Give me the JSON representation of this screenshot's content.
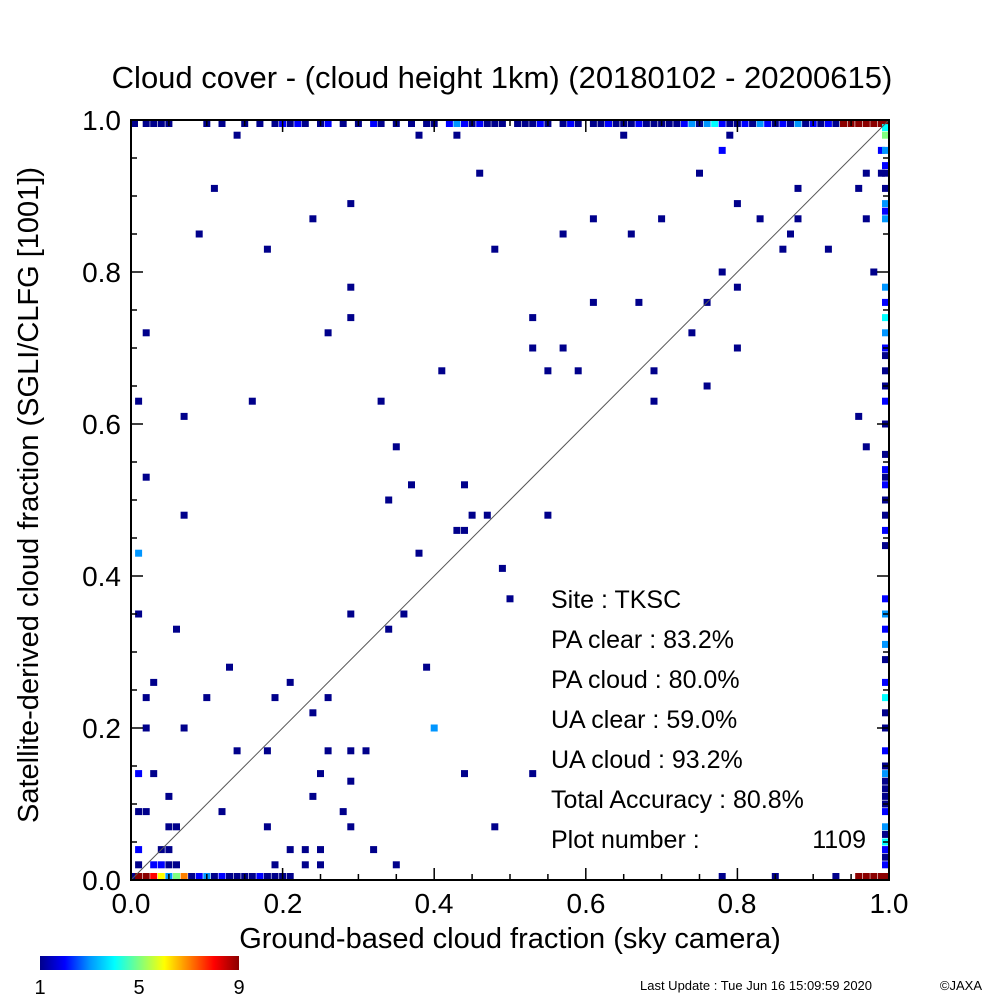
{
  "chart_data": {
    "type": "heatmap",
    "title": "Cloud cover - (cloud height 1km)  (20180102 - 20200615)",
    "xlabel": "Ground-based cloud fraction (sky camera)",
    "ylabel": "Satellite-derived cloud fraction (SGLI/CLFG [1001])",
    "xlim": [
      0,
      1
    ],
    "ylim": [
      0,
      1
    ],
    "xticks": [
      "0.0",
      "0.2",
      "0.4",
      "0.6",
      "0.8",
      "1.0"
    ],
    "yticks": [
      "0.0",
      "0.2",
      "0.4",
      "0.6",
      "0.8",
      "1.0"
    ],
    "diagonal": true,
    "grid": false,
    "colorbar": {
      "min": 1,
      "max": 9,
      "labels": [
        "1",
        "5",
        "9"
      ],
      "stops": [
        "#00008b",
        "#0000ff",
        "#0096ff",
        "#00ffff",
        "#7fff7f",
        "#ffff00",
        "#ff8000",
        "#ff0000",
        "#8b0000"
      ]
    },
    "stats": {
      "site": "Site : TKSC",
      "pa_clear": "PA clear :  83.2%",
      "pa_cloud": "PA cloud :  80.0%",
      "ua_clear": "UA clear :  59.0%",
      "ua_cloud": "UA cloud :  93.2%",
      "total_accuracy": "Total Accuracy :  80.8%",
      "plot_number_label": "Plot number :",
      "plot_number_value": "1109"
    },
    "points": [
      [
        0.01,
        0.63,
        1
      ],
      [
        0.02,
        0.72,
        1
      ],
      [
        0.02,
        0.53,
        1
      ],
      [
        0.01,
        0.43,
        3
      ],
      [
        0.01,
        0.35,
        1
      ],
      [
        0.03,
        0.26,
        1
      ],
      [
        0.02,
        0.24,
        1
      ],
      [
        0.02,
        0.2,
        1
      ],
      [
        0.01,
        0.14,
        2
      ],
      [
        0.03,
        0.14,
        1
      ],
      [
        0.01,
        0.09,
        1
      ],
      [
        0.02,
        0.09,
        1
      ],
      [
        0.05,
        0.11,
        1
      ],
      [
        0.05,
        0.07,
        1
      ],
      [
        0.06,
        0.07,
        1
      ],
      [
        0.07,
        0.61,
        1
      ],
      [
        0.06,
        0.33,
        1
      ],
      [
        0.07,
        0.2,
        1
      ],
      [
        0.07,
        0.48,
        1
      ],
      [
        0.01,
        0.04,
        2
      ],
      [
        0.04,
        0.04,
        1
      ],
      [
        0.05,
        0.04,
        1
      ],
      [
        0.01,
        0.02,
        1
      ],
      [
        0.03,
        0.02,
        2
      ],
      [
        0.04,
        0.02,
        2
      ],
      [
        0.05,
        0.02,
        1
      ],
      [
        0.06,
        0.02,
        1
      ],
      [
        0.09,
        0.85,
        1
      ],
      [
        0.11,
        0.91,
        1
      ],
      [
        0.14,
        0.98,
        1
      ],
      [
        0.16,
        0.63,
        1
      ],
      [
        0.18,
        0.83,
        1
      ],
      [
        0.1,
        0.24,
        1
      ],
      [
        0.13,
        0.28,
        1
      ],
      [
        0.14,
        0.17,
        1
      ],
      [
        0.12,
        0.09,
        1
      ],
      [
        0.18,
        0.07,
        1
      ],
      [
        0.19,
        0.24,
        1
      ],
      [
        0.21,
        0.26,
        1
      ],
      [
        0.18,
        0.17,
        1
      ],
      [
        0.19,
        0.02,
        1
      ],
      [
        0.21,
        0.04,
        1
      ],
      [
        0.23,
        0.04,
        1
      ],
      [
        0.23,
        0.02,
        1
      ],
      [
        0.25,
        0.02,
        1
      ],
      [
        0.25,
        0.04,
        1
      ],
      [
        0.24,
        0.87,
        1
      ],
      [
        0.29,
        0.89,
        1
      ],
      [
        0.26,
        0.72,
        1
      ],
      [
        0.29,
        0.78,
        1
      ],
      [
        0.29,
        0.74,
        1
      ],
      [
        0.24,
        0.22,
        1
      ],
      [
        0.26,
        0.24,
        1
      ],
      [
        0.25,
        0.14,
        1
      ],
      [
        0.24,
        0.11,
        1
      ],
      [
        0.26,
        0.17,
        1
      ],
      [
        0.28,
        0.09,
        1
      ],
      [
        0.29,
        0.07,
        1
      ],
      [
        0.29,
        0.13,
        1
      ],
      [
        0.29,
        0.17,
        1
      ],
      [
        0.29,
        0.35,
        1
      ],
      [
        0.31,
        0.17,
        1
      ],
      [
        0.32,
        0.04,
        1
      ],
      [
        0.33,
        0.63,
        1
      ],
      [
        0.34,
        0.5,
        1
      ],
      [
        0.35,
        0.57,
        1
      ],
      [
        0.36,
        0.35,
        1
      ],
      [
        0.34,
        0.33,
        1
      ],
      [
        0.37,
        0.52,
        1
      ],
      [
        0.38,
        0.43,
        1
      ],
      [
        0.39,
        0.28,
        1
      ],
      [
        0.4,
        0.2,
        3
      ],
      [
        0.35,
        0.02,
        1
      ],
      [
        0.38,
        0.98,
        1
      ],
      [
        0.43,
        0.98,
        1
      ],
      [
        0.46,
        0.93,
        1
      ],
      [
        0.41,
        0.67,
        1
      ],
      [
        0.48,
        0.83,
        1
      ],
      [
        0.43,
        0.46,
        1
      ],
      [
        0.44,
        0.46,
        1
      ],
      [
        0.45,
        0.48,
        1
      ],
      [
        0.44,
        0.52,
        1
      ],
      [
        0.47,
        0.48,
        1
      ],
      [
        0.49,
        0.41,
        1
      ],
      [
        0.5,
        0.37,
        1
      ],
      [
        0.44,
        0.14,
        1
      ],
      [
        0.48,
        0.07,
        1
      ],
      [
        0.53,
        0.14,
        1
      ],
      [
        0.53,
        0.74,
        1
      ],
      [
        0.53,
        0.7,
        1
      ],
      [
        0.57,
        0.85,
        1
      ],
      [
        0.57,
        0.7,
        1
      ],
      [
        0.55,
        0.67,
        1
      ],
      [
        0.59,
        0.67,
        1
      ],
      [
        0.55,
        0.48,
        1
      ],
      [
        0.61,
        0.87,
        1
      ],
      [
        0.61,
        0.76,
        1
      ],
      [
        0.65,
        0.98,
        1
      ],
      [
        0.66,
        0.85,
        1
      ],
      [
        0.67,
        0.76,
        1
      ],
      [
        0.69,
        0.67,
        1
      ],
      [
        0.69,
        0.63,
        1
      ],
      [
        0.7,
        0.87,
        1
      ],
      [
        0.75,
        0.93,
        1
      ],
      [
        0.74,
        0.72,
        1
      ],
      [
        0.76,
        0.76,
        1
      ],
      [
        0.76,
        0.65,
        1
      ],
      [
        0.78,
        0.96,
        2
      ],
      [
        0.79,
        0.98,
        1
      ],
      [
        0.8,
        0.89,
        1
      ],
      [
        0.78,
        0.8,
        1
      ],
      [
        0.8,
        0.78,
        1
      ],
      [
        0.8,
        0.7,
        1
      ],
      [
        0.83,
        0.87,
        1
      ],
      [
        0.88,
        0.91,
        1
      ],
      [
        0.87,
        0.85,
        1
      ],
      [
        0.88,
        0.87,
        1
      ],
      [
        0.86,
        0.83,
        1
      ],
      [
        0.92,
        0.83,
        1
      ],
      [
        0.96,
        0.91,
        1
      ],
      [
        0.96,
        0.61,
        1
      ],
      [
        0.97,
        0.93,
        1
      ],
      [
        0.97,
        0.87,
        1
      ],
      [
        0.98,
        0.8,
        1
      ],
      [
        0.97,
        0.57,
        1
      ],
      [
        0.99,
        0.96,
        2
      ],
      [
        0.99,
        0.93,
        1
      ],
      [
        0.78,
        0.0,
        1
      ],
      [
        0.85,
        0.0,
        1
      ],
      [
        0.93,
        0.0,
        1
      ]
    ],
    "top_edge": [
      [
        0.0,
        1
      ],
      [
        0.02,
        1
      ],
      [
        0.03,
        1
      ],
      [
        0.04,
        1
      ],
      [
        0.05,
        1
      ],
      [
        0.1,
        1
      ],
      [
        0.12,
        1
      ],
      [
        0.15,
        1
      ],
      [
        0.17,
        1
      ],
      [
        0.19,
        1
      ],
      [
        0.2,
        2
      ],
      [
        0.21,
        1
      ],
      [
        0.22,
        2
      ],
      [
        0.23,
        1
      ],
      [
        0.25,
        1
      ],
      [
        0.26,
        2
      ],
      [
        0.28,
        1
      ],
      [
        0.3,
        1
      ],
      [
        0.32,
        2
      ],
      [
        0.33,
        1
      ],
      [
        0.35,
        1
      ],
      [
        0.37,
        1
      ],
      [
        0.39,
        1
      ],
      [
        0.4,
        1
      ],
      [
        0.42,
        2
      ],
      [
        0.43,
        3
      ],
      [
        0.44,
        2
      ],
      [
        0.45,
        1
      ],
      [
        0.46,
        2
      ],
      [
        0.47,
        1
      ],
      [
        0.48,
        1
      ],
      [
        0.49,
        1
      ],
      [
        0.51,
        1
      ],
      [
        0.52,
        1
      ],
      [
        0.53,
        1
      ],
      [
        0.54,
        2
      ],
      [
        0.55,
        1
      ],
      [
        0.57,
        1
      ],
      [
        0.58,
        2
      ],
      [
        0.59,
        1
      ],
      [
        0.61,
        1
      ],
      [
        0.62,
        1
      ],
      [
        0.63,
        2
      ],
      [
        0.64,
        1
      ],
      [
        0.65,
        1
      ],
      [
        0.66,
        1
      ],
      [
        0.67,
        2
      ],
      [
        0.68,
        1
      ],
      [
        0.69,
        1
      ],
      [
        0.7,
        1
      ],
      [
        0.71,
        1
      ],
      [
        0.72,
        1
      ],
      [
        0.73,
        2
      ],
      [
        0.74,
        3
      ],
      [
        0.75,
        1
      ],
      [
        0.76,
        3
      ],
      [
        0.77,
        4
      ],
      [
        0.78,
        2
      ],
      [
        0.79,
        1
      ],
      [
        0.8,
        1
      ],
      [
        0.81,
        2
      ],
      [
        0.82,
        1
      ],
      [
        0.83,
        3
      ],
      [
        0.84,
        2
      ],
      [
        0.85,
        1
      ],
      [
        0.86,
        2
      ],
      [
        0.87,
        1
      ],
      [
        0.88,
        3
      ],
      [
        0.89,
        1
      ],
      [
        0.9,
        2
      ],
      [
        0.91,
        1
      ],
      [
        0.92,
        2
      ],
      [
        0.93,
        1
      ],
      [
        0.94,
        9
      ],
      [
        0.95,
        9
      ],
      [
        0.96,
        9
      ],
      [
        0.97,
        9
      ],
      [
        0.98,
        9
      ],
      [
        0.99,
        9
      ],
      [
        1.0,
        9
      ]
    ],
    "bottom_edge": [
      [
        0.0,
        1
      ],
      [
        0.01,
        9
      ],
      [
        0.02,
        9
      ],
      [
        0.03,
        8
      ],
      [
        0.04,
        6
      ],
      [
        0.05,
        3
      ],
      [
        0.06,
        5
      ],
      [
        0.07,
        7
      ],
      [
        0.08,
        1
      ],
      [
        0.09,
        2
      ],
      [
        0.1,
        3
      ],
      [
        0.11,
        1
      ],
      [
        0.12,
        2
      ],
      [
        0.13,
        1
      ],
      [
        0.14,
        1
      ],
      [
        0.15,
        1
      ],
      [
        0.16,
        1
      ],
      [
        0.17,
        2
      ],
      [
        0.18,
        1
      ],
      [
        0.19,
        1
      ],
      [
        0.2,
        1
      ],
      [
        0.21,
        1
      ],
      [
        0.96,
        9
      ],
      [
        0.97,
        9
      ],
      [
        0.98,
        9
      ],
      [
        0.99,
        9
      ],
      [
        1.0,
        9
      ]
    ],
    "right_edge": [
      [
        0.99,
        4
      ],
      [
        0.98,
        5
      ],
      [
        0.96,
        3
      ],
      [
        0.94,
        2
      ],
      [
        0.93,
        1
      ],
      [
        0.91,
        1
      ],
      [
        0.89,
        3
      ],
      [
        0.88,
        2
      ],
      [
        0.87,
        3
      ],
      [
        0.78,
        3
      ],
      [
        0.76,
        2
      ],
      [
        0.74,
        4
      ],
      [
        0.72,
        3
      ],
      [
        0.7,
        2
      ],
      [
        0.69,
        1
      ],
      [
        0.67,
        1
      ],
      [
        0.65,
        1
      ],
      [
        0.63,
        2
      ],
      [
        0.6,
        1
      ],
      [
        0.56,
        1
      ],
      [
        0.54,
        2
      ],
      [
        0.53,
        1
      ],
      [
        0.52,
        2
      ],
      [
        0.5,
        1
      ],
      [
        0.48,
        1
      ],
      [
        0.46,
        2
      ],
      [
        0.44,
        1
      ],
      [
        0.37,
        2
      ],
      [
        0.35,
        3
      ],
      [
        0.33,
        2
      ],
      [
        0.31,
        3
      ],
      [
        0.29,
        1
      ],
      [
        0.26,
        2
      ],
      [
        0.24,
        4
      ],
      [
        0.22,
        1
      ],
      [
        0.2,
        1
      ],
      [
        0.17,
        2
      ],
      [
        0.15,
        1
      ],
      [
        0.14,
        3
      ],
      [
        0.13,
        1
      ],
      [
        0.12,
        1
      ],
      [
        0.11,
        1
      ],
      [
        0.1,
        1
      ],
      [
        0.09,
        2
      ],
      [
        0.07,
        3
      ],
      [
        0.06,
        1
      ],
      [
        0.05,
        4
      ],
      [
        0.04,
        2
      ],
      [
        0.03,
        1
      ],
      [
        0.02,
        2
      ]
    ]
  },
  "footer": {
    "last_update": "Last Update : Tue Jun 16 15:09:59 2020",
    "copyright": "©JAXA"
  }
}
